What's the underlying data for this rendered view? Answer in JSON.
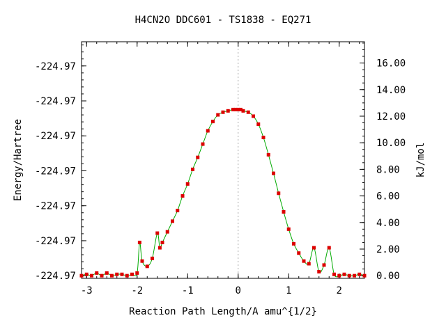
{
  "chart_data": {
    "type": "line",
    "title": "H4CN2O   DDC601 - TS1838 - EQ271",
    "xlabel": "Reaction Path Length/A amu^{1/2}",
    "ylabel_left": "Energy/Hartree",
    "ylabel_right": "kJ/mol",
    "xlim": [
      -3.1,
      2.5
    ],
    "ylim": [
      -0.2,
      17.6
    ],
    "x_ticks": [
      -3,
      -2,
      -1,
      0,
      1,
      2
    ],
    "x_tick_labels": [
      "-3",
      "-2",
      "-1",
      "0",
      "1",
      "2"
    ],
    "left_tick_values": [
      0.0,
      2.63,
      5.26,
      7.89,
      10.52,
      13.15,
      15.78
    ],
    "left_tick_labels": [
      "-224.97",
      "-224.97",
      "-224.97",
      "-224.97",
      "-224.97",
      "-224.97",
      "-224.97"
    ],
    "right_ticks": [
      0,
      2,
      4,
      6,
      8,
      10,
      12,
      14,
      16
    ],
    "right_tick_labels": [
      "0.00",
      "2.00",
      "4.00",
      "6.00",
      "8.00",
      "10.00",
      "12.00",
      "14.00",
      "16.00"
    ],
    "grid": false,
    "ts_marker_x": 0,
    "colors": {
      "line": "#00aa00",
      "point": "#dd0000",
      "ts_line": "#aaaaaa"
    },
    "series": [
      {
        "x": [
          -3.1,
          -3.0,
          -2.9,
          -2.8,
          -2.7,
          -2.6,
          -2.5,
          -2.4,
          -2.3,
          -2.2,
          -2.1,
          -2.0,
          -1.95,
          -1.9,
          -1.8,
          -1.7,
          -1.6,
          -1.55,
          -1.5,
          -1.4,
          -1.3,
          -1.2,
          -1.1,
          -1.0,
          -0.9,
          -0.8,
          -0.7,
          -0.6,
          -0.5,
          -0.4,
          -0.3,
          -0.2,
          -0.1,
          -0.05,
          0.0,
          0.05,
          0.1,
          0.2,
          0.3,
          0.4,
          0.5,
          0.6,
          0.7,
          0.8,
          0.9,
          1.0,
          1.1,
          1.2,
          1.3,
          1.4,
          1.5,
          1.6,
          1.7,
          1.8,
          1.9,
          2.0,
          2.1,
          2.2,
          2.3,
          2.4,
          2.5
        ],
        "y": [
          0.0,
          0.1,
          0.0,
          0.2,
          0.0,
          0.2,
          0.0,
          0.1,
          0.1,
          0.0,
          0.1,
          0.2,
          2.5,
          1.1,
          0.7,
          1.3,
          3.2,
          2.1,
          2.5,
          3.3,
          4.1,
          4.9,
          6.0,
          6.9,
          8.0,
          8.9,
          9.9,
          10.9,
          11.6,
          12.1,
          12.3,
          12.4,
          12.5,
          12.5,
          12.5,
          12.5,
          12.4,
          12.3,
          12.0,
          11.4,
          10.4,
          9.1,
          7.7,
          6.2,
          4.8,
          3.5,
          2.4,
          1.7,
          1.1,
          0.9,
          2.1,
          0.3,
          0.8,
          2.1,
          0.1,
          0.0,
          0.1,
          0.0,
          0.0,
          0.1,
          0.0
        ]
      }
    ]
  }
}
